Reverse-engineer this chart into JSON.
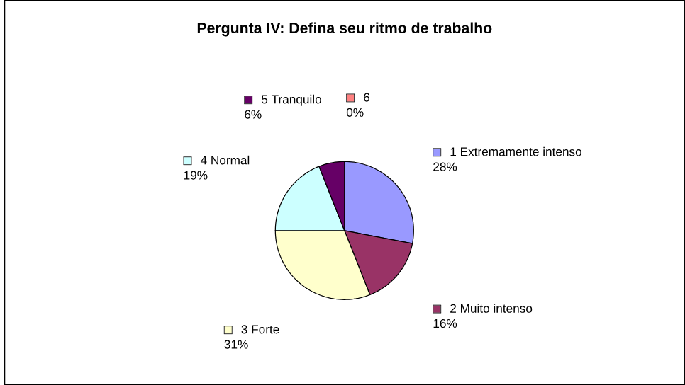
{
  "chart_data": {
    "type": "pie",
    "title": "Pergunta IV: Defina seu ritmo de trabalho",
    "categories": [
      "1 Extremamente intenso",
      "2 Muito intenso",
      "3 Forte",
      "4 Normal",
      "5 Tranquilo",
      "6"
    ],
    "values": [
      28,
      16,
      31,
      19,
      6,
      0
    ],
    "value_labels": [
      "28%",
      "16%",
      "31%",
      "19%",
      "6%",
      "0%"
    ],
    "colors": [
      "#9999ff",
      "#993366",
      "#ffffcc",
      "#ccffff",
      "#660066",
      "#ff8080"
    ],
    "legend": "right"
  }
}
